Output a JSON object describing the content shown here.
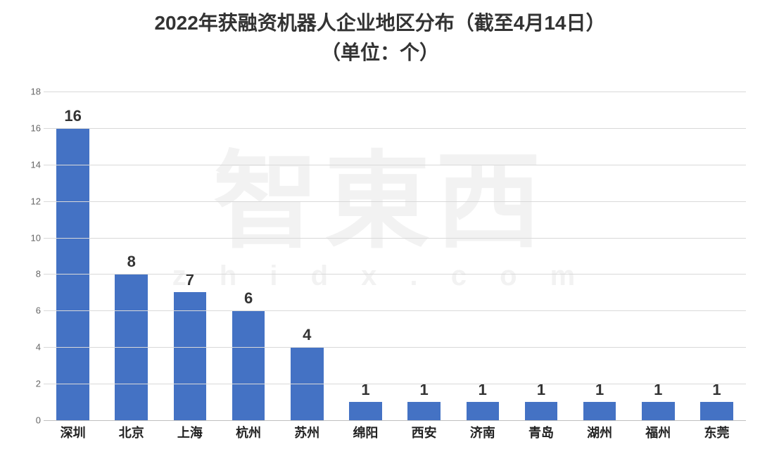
{
  "chart": {
    "type": "bar",
    "title_line1": "2022年获融资机器人企业地区分布（截至4月14日）",
    "title_line2": "（单位：个）",
    "title_fontsize": 28,
    "title_color": "#333333",
    "categories": [
      "深圳",
      "北京",
      "上海",
      "杭州",
      "苏州",
      "绵阳",
      "西安",
      "济南",
      "青岛",
      "湖州",
      "福州",
      "东莞"
    ],
    "values": [
      16,
      8,
      7,
      6,
      4,
      1,
      1,
      1,
      1,
      1,
      1,
      1
    ],
    "bar_color": "#4472c4",
    "bar_width_ratio": 0.56,
    "value_label_fontsize": 22,
    "value_label_color": "#333333",
    "x_label_fontsize": 18,
    "x_label_color": "#222222",
    "y_label_fontsize": 13,
    "y_label_color": "#666666",
    "ylim": [
      0,
      18
    ],
    "ytick_step": 2,
    "yticks": [
      0,
      2,
      4,
      6,
      8,
      10,
      12,
      14,
      16,
      18
    ],
    "grid_color": "#d9d9d9",
    "axis_color": "#bfbfbf",
    "background_color": "#ffffff"
  },
  "watermark": {
    "big_text": "智東西",
    "small_text": "z h i d x . c o m",
    "color": "#f2f2f2",
    "big_fontsize": 150,
    "small_fontsize": 40
  }
}
